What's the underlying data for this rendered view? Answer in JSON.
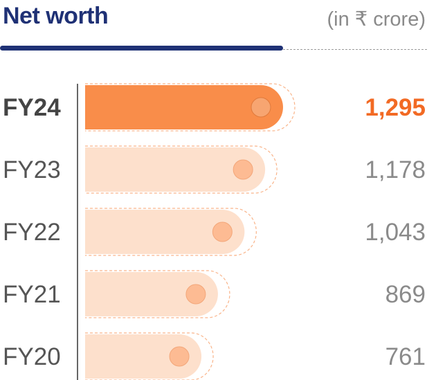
{
  "header": {
    "title": "Net worth",
    "unit": "(in ₹ crore)"
  },
  "colors": {
    "title": "#1f3175",
    "highlight_bar": "#f98d4a",
    "highlight_value": "#f26a24",
    "bar": "#fde0cc",
    "dot_highlight": "#f7a571",
    "dot": "#fdbb93",
    "dash": "#f9b48a"
  },
  "chart_data": {
    "type": "bar",
    "orientation": "horizontal",
    "title": "Net worth",
    "unit": "(in ₹ crore)",
    "categories": [
      "FY24",
      "FY23",
      "FY22",
      "FY21",
      "FY20"
    ],
    "values": [
      1295,
      1178,
      1043,
      869,
      761
    ],
    "value_labels": [
      "1,295",
      "1,178",
      "1,043",
      "869",
      "761"
    ],
    "highlight_index": 0,
    "grid": false,
    "legend": "none"
  }
}
